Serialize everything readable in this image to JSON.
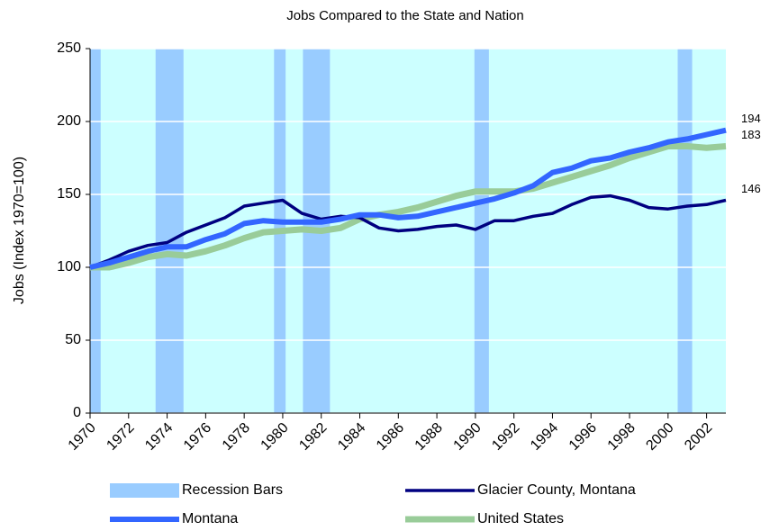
{
  "chart_data": {
    "type": "line",
    "title": "Jobs Compared to the State and Nation",
    "y_label": "Jobs (Index 1970=100)",
    "x": [
      1970,
      1971,
      1972,
      1973,
      1974,
      1975,
      1976,
      1977,
      1978,
      1979,
      1980,
      1981,
      1982,
      1983,
      1984,
      1985,
      1986,
      1987,
      1988,
      1989,
      1990,
      1991,
      1992,
      1993,
      1994,
      1995,
      1996,
      1997,
      1998,
      1999,
      2000,
      2001,
      2002,
      2003
    ],
    "xlim": [
      1970,
      2003
    ],
    "xticks": [
      1970,
      1972,
      1974,
      1976,
      1978,
      1980,
      1982,
      1984,
      1986,
      1988,
      1990,
      1992,
      1994,
      1996,
      1998,
      2000,
      2002
    ],
    "ylim": [
      0,
      250
    ],
    "yticks": [
      0,
      50,
      100,
      150,
      200,
      250
    ],
    "grid": true,
    "background": "#ccffff",
    "recession_bars": {
      "name": "Recession Bars",
      "color": "#99ccff",
      "ranges": [
        [
          1970,
          1970.55
        ],
        [
          1973.4,
          1974.85
        ],
        [
          1979.55,
          1980.15
        ],
        [
          1981.05,
          1982.45
        ],
        [
          1989.95,
          1990.7
        ],
        [
          2000.5,
          2001.25
        ]
      ]
    },
    "series": [
      {
        "name": "Glacier County, Montana",
        "color": "#000080",
        "width": 3.5,
        "values": [
          100,
          105,
          111,
          115,
          117,
          124,
          129,
          134,
          142,
          144,
          146,
          137,
          133,
          135,
          134,
          127,
          125,
          126,
          128,
          129,
          126,
          132,
          132,
          135,
          137,
          143,
          148,
          149,
          146,
          141,
          140,
          142,
          143,
          146
        ]
      },
      {
        "name": "Montana",
        "color": "#3366ff",
        "width": 6,
        "values": [
          100,
          103,
          107,
          111,
          114,
          114,
          119,
          123,
          130,
          132,
          131,
          131,
          131,
          133,
          136,
          136,
          134,
          135,
          138,
          141,
          144,
          147,
          151,
          156,
          165,
          168,
          173,
          175,
          179,
          182,
          186,
          188,
          191,
          194
        ]
      },
      {
        "name": "United States",
        "color": "#99cc99",
        "width": 7,
        "values": [
          100,
          100,
          103,
          107,
          109,
          108,
          111,
          115,
          120,
          124,
          125,
          126,
          125,
          127,
          133,
          136,
          138,
          141,
          145,
          149,
          152,
          152,
          152,
          154,
          158,
          162,
          166,
          170,
          175,
          179,
          183,
          183,
          182,
          183
        ]
      }
    ]
  }
}
